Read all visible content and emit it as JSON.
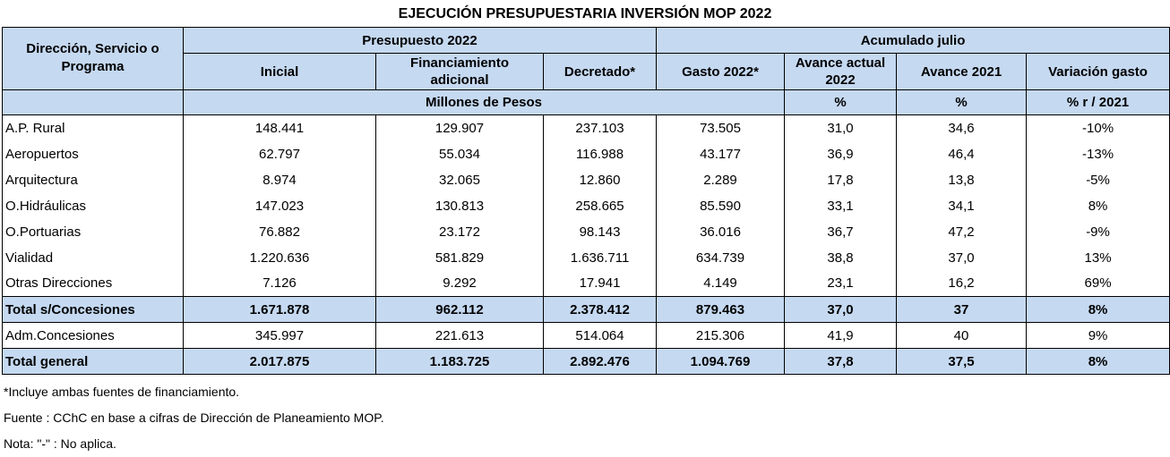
{
  "title": "EJECUCIÓN PRESUPUESTARIA INVERSIÓN MOP 2022",
  "header": {
    "stub": "Dirección, Servicio  o Programa",
    "group_presupuesto": "Presupuesto  2022",
    "group_acumulado": "Acumulado julio",
    "columns": [
      "Inicial",
      "Financiamiento adicional",
      "Decretado*",
      "Gasto 2022*",
      "Avance actual 2022",
      "Avance 2021",
      "Variación gasto"
    ],
    "units": {
      "millones": "Millones de Pesos",
      "pct1": "%",
      "pct2": "%",
      "var": "% r / 2021"
    }
  },
  "rows": [
    {
      "name": "A.P. Rural",
      "inicial": "148.441",
      "fin_adicional": "129.907",
      "decretado": "237.103",
      "gasto": "73.505",
      "avance_actual": "31,0",
      "avance_2021": "34,6",
      "variacion": "-10%"
    },
    {
      "name": "Aeropuertos",
      "inicial": "62.797",
      "fin_adicional": "55.034",
      "decretado": "116.988",
      "gasto": "43.177",
      "avance_actual": "36,9",
      "avance_2021": "46,4",
      "variacion": "-13%"
    },
    {
      "name": "Arquitectura",
      "inicial": "8.974",
      "fin_adicional": "32.065",
      "decretado": "12.860",
      "gasto": "2.289",
      "avance_actual": "17,8",
      "avance_2021": "13,8",
      "variacion": "-5%"
    },
    {
      "name": "O.Hidráulicas",
      "inicial": "147.023",
      "fin_adicional": "130.813",
      "decretado": "258.665",
      "gasto": "85.590",
      "avance_actual": "33,1",
      "avance_2021": "34,1",
      "variacion": "8%"
    },
    {
      "name": "O.Portuarias",
      "inicial": "76.882",
      "fin_adicional": "23.172",
      "decretado": "98.143",
      "gasto": "36.016",
      "avance_actual": "36,7",
      "avance_2021": "47,2",
      "variacion": "-9%"
    },
    {
      "name": "Vialidad",
      "inicial": "1.220.636",
      "fin_adicional": "581.829",
      "decretado": "1.636.711",
      "gasto": "634.739",
      "avance_actual": "38,8",
      "avance_2021": "37,0",
      "variacion": "13%"
    },
    {
      "name": "Otras Direcciones",
      "inicial": "7.126",
      "fin_adicional": "9.292",
      "decretado": "17.941",
      "gasto": "4.149",
      "avance_actual": "23,1",
      "avance_2021": "16,2",
      "variacion": "69%"
    },
    {
      "name": "Total s/Concesiones",
      "inicial": "1.671.878",
      "fin_adicional": "962.112",
      "decretado": "2.378.412",
      "gasto": "879.463",
      "avance_actual": "37,0",
      "avance_2021": "37",
      "variacion": "8%"
    },
    {
      "name": "Adm.Concesiones",
      "inicial": "345.997",
      "fin_adicional": "221.613",
      "decretado": "514.064",
      "gasto": "215.306",
      "avance_actual": "41,9",
      "avance_2021": "40",
      "variacion": "9%"
    },
    {
      "name": "Total general",
      "inicial": "2.017.875",
      "fin_adicional": "1.183.725",
      "decretado": "2.892.476",
      "gasto": "1.094.769",
      "avance_actual": "37,8",
      "avance_2021": "37,5",
      "variacion": "8%"
    }
  ],
  "notes": [
    "*Incluye ambas fuentes de financiamiento.",
    "Fuente : CChC en base a cifras de Dirección de Planeamiento MOP.",
    "Nota: \"-\" : No aplica."
  ]
}
